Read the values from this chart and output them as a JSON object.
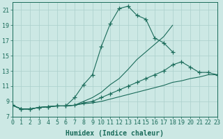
{
  "title": "",
  "xlabel": "Humidex (Indice chaleur)",
  "ylabel": "",
  "bg_color": "#cce8e4",
  "grid_color": "#aacfcb",
  "line_color": "#1a6b5a",
  "ylim": [
    7,
    22
  ],
  "xlim": [
    0,
    23
  ],
  "yticks": [
    7,
    9,
    11,
    13,
    15,
    17,
    19,
    21
  ],
  "xticks": [
    0,
    1,
    2,
    3,
    4,
    5,
    6,
    7,
    8,
    9,
    10,
    11,
    12,
    13,
    14,
    15,
    16,
    17,
    18,
    19,
    20,
    21,
    22,
    23
  ],
  "xtick_labels": [
    "0",
    "1",
    "2",
    "3",
    "4",
    "5",
    "6",
    "7",
    "8",
    "9",
    "10",
    "11",
    "12",
    "13",
    "14",
    "15",
    "16",
    "17",
    "18",
    "19",
    "20",
    "21",
    "22",
    "23"
  ],
  "curves": [
    {
      "x": [
        0,
        1,
        2,
        3,
        4,
        5,
        6,
        7,
        8,
        9,
        10,
        11,
        12,
        13,
        14,
        15,
        16,
        17,
        18,
        19,
        20,
        21,
        22,
        23
      ],
      "y": [
        8.5,
        8.0,
        8.0,
        8.2,
        8.3,
        8.4,
        8.4,
        9.5,
        11.2,
        12.5,
        16.2,
        19.2,
        21.2,
        21.5,
        20.3,
        19.8,
        17.3,
        16.7,
        15.5,
        null,
        null,
        null,
        null,
        null
      ],
      "has_markers": true
    },
    {
      "x": [
        0,
        1,
        2,
        3,
        4,
        5,
        6,
        7,
        8,
        9,
        10,
        11,
        12,
        13,
        14,
        15,
        16,
        17,
        18,
        19,
        20,
        21,
        22,
        23
      ],
      "y": [
        8.5,
        8.0,
        8.0,
        8.2,
        8.3,
        8.4,
        8.4,
        8.5,
        9.0,
        9.5,
        10.2,
        11.2,
        12.0,
        13.2,
        14.5,
        15.5,
        16.5,
        17.5,
        19.0,
        null,
        null,
        null,
        null,
        null
      ],
      "has_markers": false
    },
    {
      "x": [
        0,
        1,
        2,
        3,
        4,
        5,
        6,
        7,
        8,
        9,
        10,
        11,
        12,
        13,
        14,
        15,
        16,
        17,
        18,
        19,
        20,
        21,
        22,
        23
      ],
      "y": [
        8.5,
        8.0,
        8.0,
        8.2,
        8.3,
        8.4,
        8.4,
        8.5,
        8.8,
        9.0,
        9.5,
        10.0,
        10.5,
        11.0,
        11.5,
        12.0,
        12.5,
        13.0,
        13.8,
        14.2,
        13.5,
        12.8,
        12.8,
        12.5
      ],
      "has_markers": true
    },
    {
      "x": [
        0,
        1,
        2,
        3,
        4,
        5,
        6,
        7,
        8,
        9,
        10,
        11,
        12,
        13,
        14,
        15,
        16,
        17,
        18,
        19,
        20,
        21,
        22,
        23
      ],
      "y": [
        8.5,
        8.0,
        8.0,
        8.2,
        8.3,
        8.4,
        8.4,
        8.5,
        8.7,
        8.8,
        9.0,
        9.3,
        9.6,
        9.9,
        10.2,
        10.5,
        10.8,
        11.1,
        11.5,
        11.7,
        12.0,
        12.2,
        12.5,
        12.5
      ],
      "has_markers": false
    }
  ]
}
